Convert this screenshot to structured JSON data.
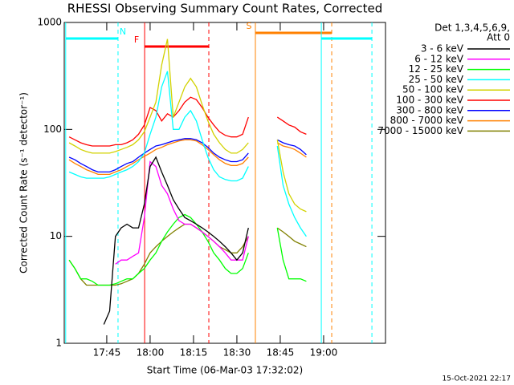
{
  "chart_data": {
    "type": "line",
    "title": "RHESSI Observing Summary Count Rates, Corrected",
    "x_label": "Start Time (06-Mar-03 17:32:02)",
    "y_label": "Corrected Count Rate (s⁻¹ detector⁻¹)",
    "footer": "15-Oct-2021 22:17",
    "legend_title": [
      "Det 1,3,4,5,6,9,",
      "Att 0"
    ],
    "ylog": true,
    "ylim": [
      1,
      1000
    ],
    "yticks": [
      1,
      10,
      100,
      1000
    ],
    "xlim": [
      1050.3,
      1161.4
    ],
    "xticks": [
      {
        "value": 1065,
        "label": "17:45"
      },
      {
        "value": 1080,
        "label": "18:00"
      },
      {
        "value": 1095,
        "label": "18:15"
      },
      {
        "value": 1110,
        "label": "18:30"
      },
      {
        "value": 1125,
        "label": "18:45"
      },
      {
        "value": 1140,
        "label": "19:00"
      }
    ],
    "x": [
      1052,
      1054,
      1056,
      1058,
      1060,
      1062,
      1064,
      1066,
      1068,
      1070,
      1072,
      1074,
      1076,
      1078,
      1080,
      1082,
      1084,
      1086,
      1088,
      1090,
      1092,
      1094,
      1096,
      1098,
      1100,
      1102,
      1104,
      1106,
      1108,
      1110,
      1112,
      1114,
      1120,
      1124,
      1126,
      1128,
      1130,
      1132,
      1134
    ],
    "series": [
      {
        "name": "3 - 6 keV",
        "color": "#000000",
        "values": [
          null,
          null,
          null,
          null,
          null,
          null,
          1.5,
          2,
          10,
          12,
          13,
          12,
          12,
          20,
          45,
          55,
          40,
          30,
          22,
          18,
          15,
          14,
          13,
          12,
          11,
          10,
          9,
          8,
          7,
          6,
          7,
          12,
          null,
          null,
          null,
          null,
          null,
          null,
          null
        ]
      },
      {
        "name": "6 - 12 keV",
        "color": "#ff00ff",
        "values": [
          null,
          null,
          null,
          null,
          null,
          null,
          null,
          null,
          5.5,
          6,
          6,
          6.5,
          7,
          15,
          50,
          45,
          30,
          25,
          18,
          14,
          13,
          13,
          12,
          11,
          10,
          9,
          8,
          7,
          6,
          6,
          6,
          10,
          null,
          null,
          null,
          null,
          null,
          null,
          null
        ]
      },
      {
        "name": "12 - 25 keV",
        "color": "#00ff00",
        "values": [
          6,
          5,
          4,
          4,
          3.8,
          3.5,
          3.5,
          3.5,
          3.6,
          3.8,
          4,
          4,
          4.5,
          5,
          6,
          7,
          9,
          11,
          13,
          15,
          16,
          15,
          13,
          11,
          9,
          7,
          6,
          5,
          4.5,
          4.5,
          5,
          7,
          null,
          12,
          6,
          4,
          4,
          4,
          3.8
        ]
      },
      {
        "name": "25 - 50 keV",
        "color": "#00ffff",
        "values": [
          40,
          38,
          36,
          35,
          35,
          35,
          35,
          36,
          38,
          40,
          42,
          45,
          50,
          60,
          90,
          130,
          250,
          350,
          100,
          100,
          130,
          150,
          120,
          80,
          55,
          42,
          36,
          34,
          33,
          33,
          35,
          45,
          null,
          70,
          30,
          20,
          15,
          12,
          10
        ]
      },
      {
        "name": "50 - 100 keV",
        "color": "#d2d200",
        "values": [
          75,
          70,
          65,
          62,
          60,
          60,
          60,
          60,
          62,
          65,
          68,
          72,
          80,
          95,
          130,
          180,
          400,
          700,
          130,
          180,
          250,
          300,
          250,
          170,
          120,
          90,
          75,
          65,
          60,
          60,
          65,
          75,
          null,
          80,
          40,
          25,
          20,
          18,
          17
        ]
      },
      {
        "name": "100 - 300 keV",
        "color": "#ff0000",
        "values": [
          85,
          80,
          75,
          72,
          70,
          70,
          70,
          70,
          72,
          72,
          75,
          80,
          90,
          110,
          160,
          150,
          120,
          140,
          130,
          150,
          180,
          200,
          190,
          160,
          130,
          110,
          95,
          88,
          85,
          85,
          90,
          130,
          null,
          130,
          120,
          110,
          105,
          95,
          90
        ]
      },
      {
        "name": "300 - 800 keV",
        "color": "#0000ff",
        "values": [
          55,
          52,
          48,
          45,
          42,
          40,
          40,
          40,
          42,
          45,
          48,
          50,
          55,
          60,
          65,
          70,
          72,
          75,
          78,
          80,
          82,
          82,
          80,
          75,
          68,
          60,
          55,
          52,
          50,
          50,
          52,
          60,
          null,
          80,
          75,
          72,
          70,
          65,
          58
        ]
      },
      {
        "name": "800 - 7000 keV",
        "color": "#ff8000",
        "values": [
          52,
          48,
          45,
          42,
          40,
          38,
          38,
          38,
          40,
          42,
          45,
          48,
          52,
          56,
          60,
          65,
          68,
          72,
          75,
          78,
          80,
          80,
          78,
          72,
          65,
          58,
          52,
          48,
          46,
          46,
          48,
          55,
          null,
          75,
          70,
          68,
          65,
          60,
          55
        ]
      },
      {
        "name": "7000 - 15000 keV",
        "color": "#808000",
        "values": [
          6,
          5,
          4,
          3.5,
          3.5,
          3.5,
          3.5,
          3.5,
          3.5,
          3.6,
          3.8,
          4,
          4.5,
          5.5,
          7,
          8,
          9,
          10,
          11,
          12,
          13,
          13,
          12,
          11,
          10,
          9,
          8,
          7.5,
          7,
          7,
          8,
          10,
          null,
          12,
          11,
          10,
          9,
          8.5,
          8
        ]
      }
    ],
    "intervals": [
      {
        "label": "N",
        "color": "#00ffff",
        "start": 1050.8,
        "end": 1068.9
      },
      {
        "label": "S",
        "color": "#ff8000",
        "start": 1116.4,
        "end": 1142.8
      },
      {
        "label": "F",
        "color": "#ff0000",
        "start": 1078.1,
        "end": 1100.3
      },
      {
        "color": "#00ffff",
        "start": 1139.2,
        "end": 1156.7
      }
    ]
  }
}
